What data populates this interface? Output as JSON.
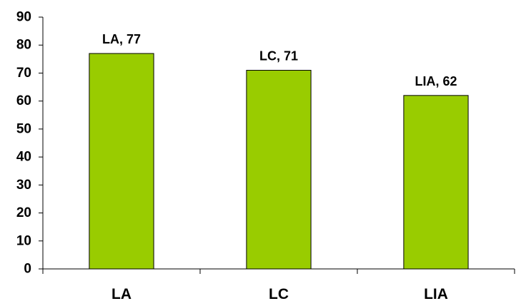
{
  "chart_data": {
    "type": "bar",
    "categories": [
      "LA",
      "LC",
      "LIA"
    ],
    "values": [
      77,
      71,
      62
    ],
    "data_labels": [
      "LA, 77",
      "LC, 71",
      "LIA, 62"
    ],
    "title": "",
    "xlabel": "",
    "ylabel": "",
    "ylim": [
      0,
      90
    ],
    "y_ticks": [
      0,
      10,
      20,
      30,
      40,
      50,
      60,
      70,
      80,
      90
    ],
    "grid": false,
    "legend": "none",
    "bar_color": "#99cc00",
    "bar_outline_color": "#000000"
  }
}
